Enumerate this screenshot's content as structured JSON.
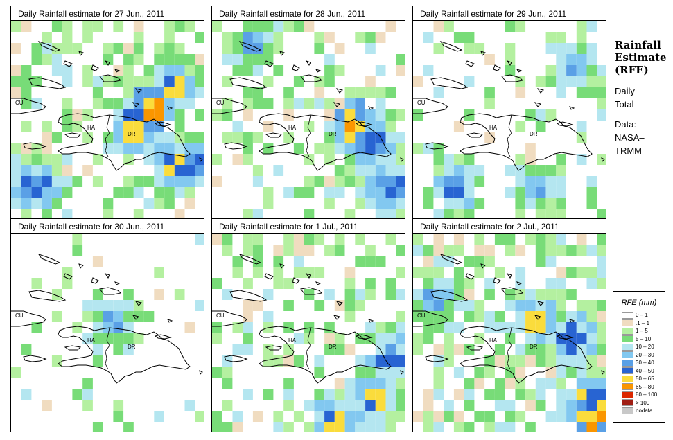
{
  "panels": [
    {
      "title": "Daily Rainfall estimate for  27 Jun., 2011",
      "seed": 11,
      "cov": 0.42,
      "hot": [
        [
          7,
          4,
          4
        ],
        [
          8,
          3,
          3
        ],
        [
          6,
          5,
          3
        ],
        [
          8,
          7,
          3
        ],
        [
          1,
          8,
          2
        ],
        [
          9,
          7,
          2
        ]
      ]
    },
    {
      "title": "Daily Rainfall estimate for  28 Jun., 2011",
      "seed": 23,
      "cov": 0.3,
      "hot": [
        [
          7,
          5,
          4
        ],
        [
          8,
          6,
          2
        ],
        [
          9,
          8,
          2
        ],
        [
          2,
          1,
          1
        ]
      ]
    },
    {
      "title": "Daily Rainfall estimate for  29 Jun., 2011",
      "seed": 37,
      "cov": 0.2,
      "hot": [
        [
          2,
          8,
          2
        ],
        [
          6,
          8,
          1
        ],
        [
          8,
          2,
          1
        ]
      ]
    },
    {
      "title": "Daily Rainfall estimate for  30 Jun., 2011",
      "seed": 41,
      "cov": 0.1,
      "hot": [
        [
          5,
          4,
          1
        ]
      ]
    },
    {
      "title": "Daily Rainfall estimate for  1 Jul., 2011",
      "seed": 53,
      "cov": 0.4,
      "hot": [
        [
          8,
          8,
          3
        ],
        [
          6,
          9,
          3
        ],
        [
          9,
          6,
          2
        ]
      ]
    },
    {
      "title": "Daily Rainfall estimate for  2 Jul., 2011",
      "seed": 67,
      "cov": 0.55,
      "hot": [
        [
          6,
          4,
          3
        ],
        [
          8,
          5,
          3
        ],
        [
          9,
          9,
          4
        ],
        [
          9,
          8,
          3
        ],
        [
          1,
          3,
          1
        ]
      ]
    }
  ],
  "map_labels": {
    "cuba": "CU",
    "haiti": "HA",
    "dr": "DR"
  },
  "side": {
    "title_lines": [
      "Rainfall",
      "Estimate",
      "(RFE)"
    ],
    "lines": [
      "Daily",
      "Total",
      "",
      "Data:",
      "NASA–",
      "TRMM"
    ]
  },
  "legend": {
    "title": "RFE (mm)",
    "items": [
      {
        "label": "0 – 1",
        "color": "#ffffff"
      },
      {
        "label": ".1 – 1",
        "color": "#f0dcc0"
      },
      {
        "label": "1 – 5",
        "color": "#b4f0a0"
      },
      {
        "label": "5 – 10",
        "color": "#78dc78"
      },
      {
        "label": "10 – 20",
        "color": "#b4e6f0"
      },
      {
        "label": "20 – 30",
        "color": "#82c8f0"
      },
      {
        "label": "30 – 40",
        "color": "#5aa0e6"
      },
      {
        "label": "40 – 50",
        "color": "#2864d2"
      },
      {
        "label": "50 – 65",
        "color": "#fadc3c"
      },
      {
        "label": "65 – 80",
        "color": "#fa9600"
      },
      {
        "label": "80 – 100",
        "color": "#dc2800"
      },
      {
        "label": "> 100",
        "color": "#a01e14"
      },
      {
        "label": "nodata",
        "color": "#c8c8c8"
      }
    ]
  }
}
